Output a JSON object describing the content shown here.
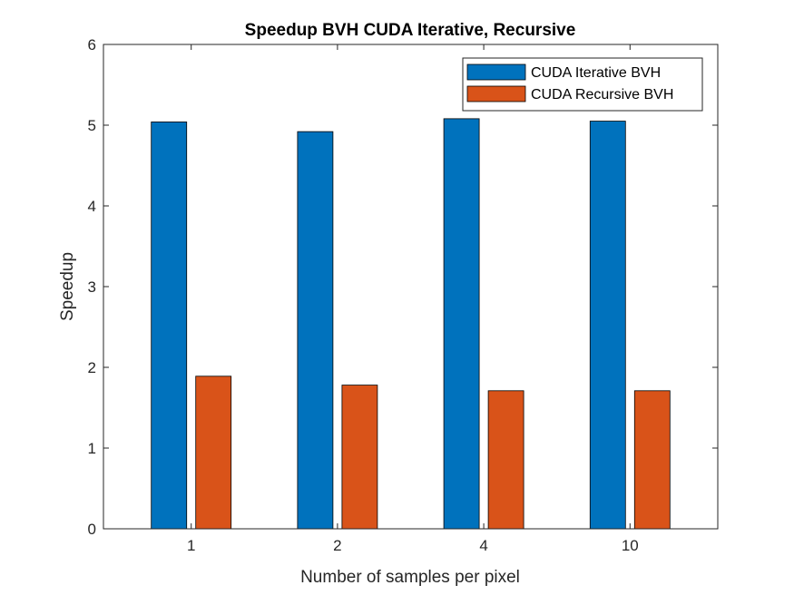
{
  "chart_data": {
    "type": "bar",
    "title": "Speedup BVH CUDA Iterative, Recursive",
    "xlabel": "Number of samples per pixel",
    "ylabel": "Speedup",
    "categories": [
      "1",
      "2",
      "4",
      "10"
    ],
    "ylim": [
      0,
      6
    ],
    "yticks": [
      0,
      1,
      2,
      3,
      4,
      5,
      6
    ],
    "grid": false,
    "legend_position": "top-right",
    "series": [
      {
        "name": "CUDA Iterative BVH",
        "color": "#0072BD",
        "values": [
          5.04,
          4.92,
          5.08,
          5.05
        ]
      },
      {
        "name": "CUDA Recursive BVH",
        "color": "#D95319",
        "values": [
          1.89,
          1.78,
          1.71,
          1.71
        ]
      }
    ]
  }
}
